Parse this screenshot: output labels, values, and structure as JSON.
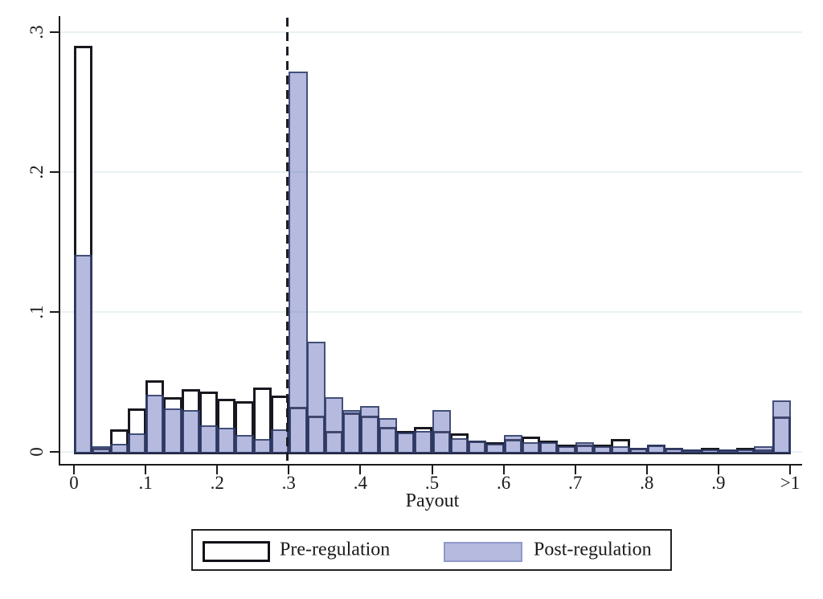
{
  "figure": {
    "xlabel": "Payout",
    "legend": {
      "pre_label": "Pre-regulation",
      "post_label": "Post-regulation"
    }
  },
  "chart_data": {
    "type": "bar",
    "subtype": "overlaid-histogram",
    "title": "",
    "xlabel": "Payout",
    "ylabel": "",
    "xlim": [
      0,
      1.0125
    ],
    "ylim": [
      0,
      0.3
    ],
    "grid": "horizontal",
    "gridline_color": "#e9f1f2",
    "bin_width": 0.025,
    "bin_starts": [
      0,
      0.025,
      0.05,
      0.075,
      0.1,
      0.125,
      0.15,
      0.175,
      0.2,
      0.225,
      0.25,
      0.275,
      0.3,
      0.325,
      0.35,
      0.375,
      0.4,
      0.425,
      0.45,
      0.475,
      0.5,
      0.525,
      0.55,
      0.575,
      0.6,
      0.625,
      0.65,
      0.675,
      0.7,
      0.725,
      0.75,
      0.775,
      0.8,
      0.825,
      0.85,
      0.875,
      0.9,
      0.925,
      0.95,
      0.975
    ],
    "series": [
      {
        "name": "Pre-regulation",
        "style": "hollow",
        "fill": "none",
        "border_color": "#181820",
        "values": [
          0.29,
          0.003,
          0.016,
          0.031,
          0.051,
          0.039,
          0.045,
          0.043,
          0.038,
          0.036,
          0.046,
          0.04,
          0.032,
          0.026,
          0.015,
          0.028,
          0.026,
          0.018,
          0.015,
          0.018,
          0.015,
          0.013,
          0.008,
          0.007,
          0.009,
          0.011,
          0.008,
          0.005,
          0.005,
          0.005,
          0.009,
          0.003,
          0.005,
          0.003,
          0.002,
          0.003,
          0.002,
          0.003,
          0.002,
          0.025
        ]
      },
      {
        "name": "Post-regulation",
        "style": "filled-translucent",
        "fill": "#b5bade",
        "border_color": "#3a4a78",
        "values": [
          0.141,
          0.004,
          0.006,
          0.013,
          0.041,
          0.031,
          0.03,
          0.019,
          0.017,
          0.012,
          0.009,
          0.016,
          0.272,
          0.079,
          0.039,
          0.03,
          0.033,
          0.024,
          0.014,
          0.015,
          0.03,
          0.01,
          0.008,
          0.006,
          0.012,
          0.007,
          0.007,
          0.004,
          0.007,
          0.004,
          0.004,
          0.003,
          0.005,
          0.003,
          0.002,
          0.002,
          0.002,
          0.002,
          0.004,
          0.037
        ]
      }
    ],
    "xticks": {
      "values": [
        0,
        0.1,
        0.2,
        0.3,
        0.4,
        0.5,
        0.6,
        0.7,
        0.8,
        0.9,
        1.0
      ],
      "labels": [
        "0",
        ".1",
        ".2",
        ".3",
        ".4",
        ".5",
        ".6",
        ".7",
        ".8",
        ".9",
        ">1"
      ]
    },
    "yticks": {
      "values": [
        0,
        0.1,
        0.2,
        0.3
      ],
      "labels": [
        "0",
        ".1",
        ".2",
        ".3"
      ]
    },
    "vline": {
      "x": 0.3,
      "style": "dashed",
      "color": "#1d1d26"
    },
    "legend_position": "bottom-center"
  }
}
